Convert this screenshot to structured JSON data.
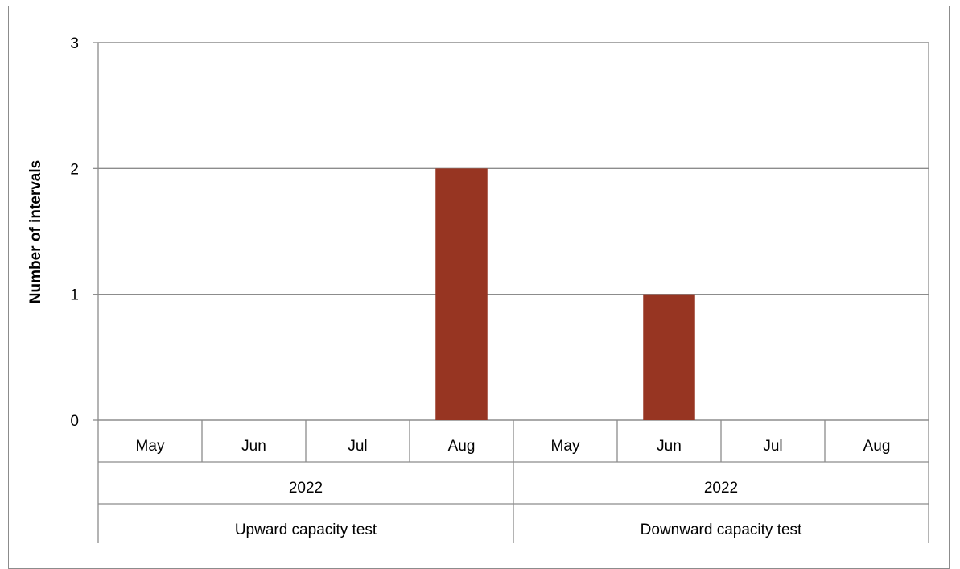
{
  "chart_data": {
    "type": "bar",
    "title": "",
    "ylabel": "Number of intervals",
    "xlabel": "",
    "ylim": [
      0,
      3
    ],
    "yticks": [
      0,
      1,
      2,
      3
    ],
    "grid": true,
    "legend": "none",
    "bar_color": "#973522",
    "groups": [
      {
        "name": "Upward capacity test",
        "year": "2022",
        "categories": [
          "May",
          "Jun",
          "Jul",
          "Aug"
        ],
        "values": [
          0,
          0,
          0,
          2
        ]
      },
      {
        "name": "Downward capacity test",
        "year": "2022",
        "categories": [
          "May",
          "Jun",
          "Jul",
          "Aug"
        ],
        "values": [
          0,
          1,
          0,
          0
        ]
      }
    ]
  }
}
